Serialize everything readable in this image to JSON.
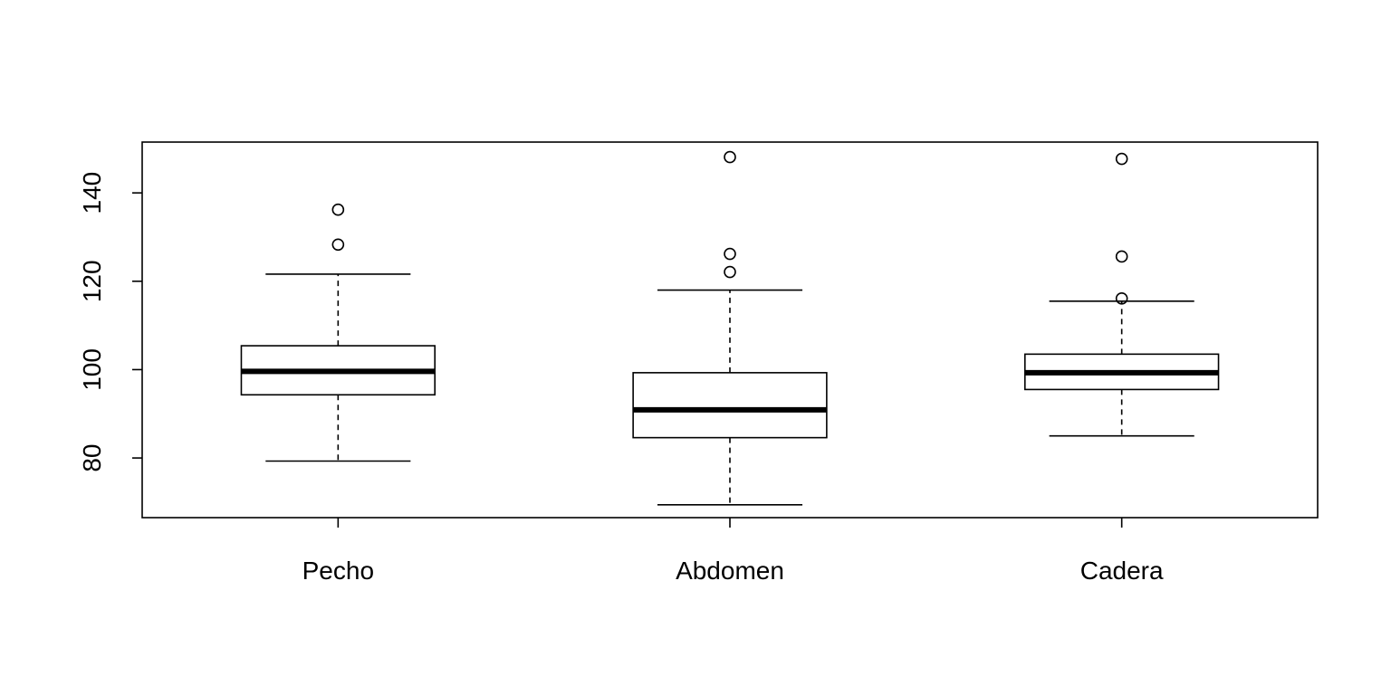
{
  "chart_data": {
    "type": "boxplot",
    "title": "",
    "xlabel": "",
    "ylabel": "",
    "ylim": [
      66.5,
      151.5
    ],
    "yticks": [
      80,
      100,
      120,
      140
    ],
    "grid": false,
    "colors": {
      "stroke": "#000000",
      "fill": "#ffffff"
    },
    "categories": [
      "Pecho",
      "Abdomen",
      "Cadera"
    ],
    "boxes": [
      {
        "name": "Pecho",
        "min": 79.3,
        "q1": 94.3,
        "median": 99.6,
        "q3": 105.4,
        "max": 121.6,
        "outliers": [
          128.3,
          136.2
        ]
      },
      {
        "name": "Abdomen",
        "min": 69.4,
        "q1": 84.6,
        "median": 90.9,
        "q3": 99.3,
        "max": 118.0,
        "outliers": [
          122.1,
          126.2,
          148.1
        ]
      },
      {
        "name": "Cadera",
        "min": 85.0,
        "q1": 95.5,
        "median": 99.3,
        "q3": 103.5,
        "max": 115.5,
        "outliers": [
          116.1,
          125.6,
          147.7
        ]
      }
    ]
  }
}
